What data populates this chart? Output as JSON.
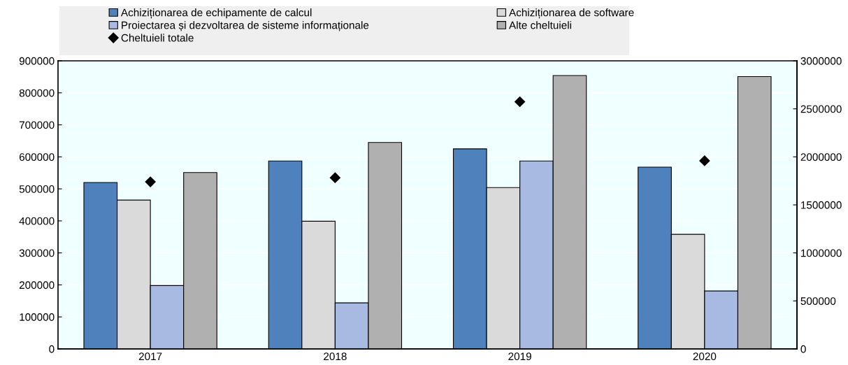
{
  "chart_data": {
    "type": "bar",
    "categories": [
      "2017",
      "2018",
      "2019",
      "2020"
    ],
    "series": [
      {
        "name": "Achiziționarea de echipamente de calcul",
        "color": "#4f81bd",
        "values": [
          520000,
          587000,
          625000,
          568000
        ]
      },
      {
        "name": "Achiziționarea de software",
        "color": "#dadada",
        "values": [
          465000,
          399000,
          504000,
          358000
        ]
      },
      {
        "name": "Proiectarea și dezvoltarea de sisteme informaționale",
        "color": "#a8b9e2",
        "values": [
          198000,
          144000,
          587000,
          181000
        ]
      },
      {
        "name": "Alte cheltuieli",
        "color": "#b0b0b0",
        "values": [
          551000,
          645000,
          854000,
          851000
        ]
      },
      {
        "name": "Cheltuieli totale",
        "type": "scatter",
        "axis": "y2",
        "marker": "diamond",
        "color": "#000000",
        "values": [
          1740000,
          1783000,
          2574000,
          1959000
        ]
      }
    ],
    "ylim": [
      0,
      900000
    ],
    "yticks": [
      0,
      100000,
      200000,
      300000,
      400000,
      500000,
      600000,
      700000,
      800000,
      900000
    ],
    "y2lim": [
      0,
      3000000
    ],
    "y2ticks": [
      0,
      500000,
      1000000,
      1500000,
      2000000,
      2500000,
      3000000
    ],
    "grid": "y",
    "legend": "top"
  }
}
